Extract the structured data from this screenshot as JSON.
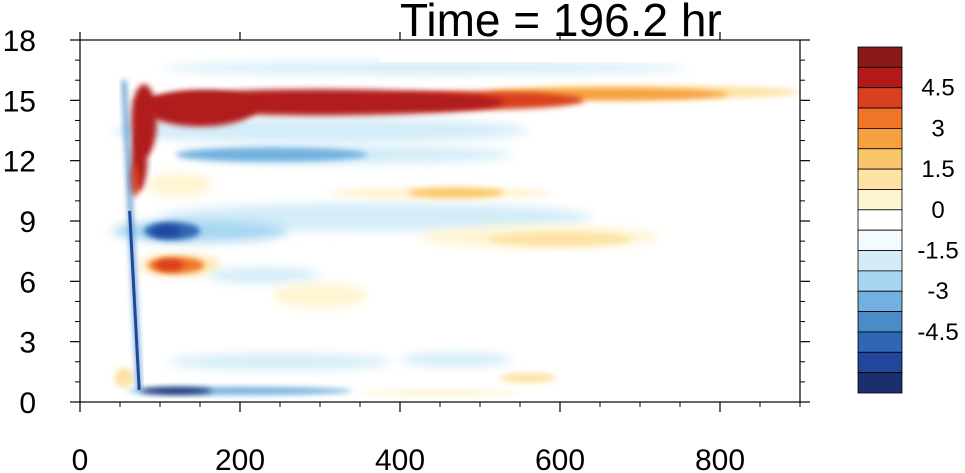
{
  "chart_data": {
    "type": "heatmap",
    "title": "Time = 196.2 hr",
    "xlim": [
      0,
      900
    ],
    "ylim": [
      0,
      18
    ],
    "x_ticks": [
      0,
      200,
      400,
      600,
      800
    ],
    "x_tick_labels": [
      "0",
      "200",
      "400",
      "600",
      "800"
    ],
    "y_ticks": [
      0,
      3,
      6,
      9,
      12,
      15,
      18
    ],
    "y_tick_labels": [
      "0",
      "3",
      "6",
      "9",
      "12",
      "15",
      "18"
    ],
    "colorbar": {
      "levels": [
        -5.25,
        -4.5,
        -3.75,
        -3,
        -2.25,
        -1.5,
        -0.75,
        0,
        0.75,
        1.5,
        2.25,
        3,
        3.75,
        4.5,
        5.25
      ],
      "labels": [
        "4.5",
        "3",
        "1.5",
        "0",
        "-1.5",
        "-3",
        "-4.5"
      ],
      "label_values": [
        4.5,
        3,
        1.5,
        0,
        -1.5,
        -3,
        -4.5
      ],
      "colors": [
        "#1b2f6e",
        "#21479c",
        "#2f67b4",
        "#4a8bc8",
        "#72b1df",
        "#a6d6f2",
        "#d3ecf8",
        "#f4fbfe",
        "#ffffff",
        "#fff4d1",
        "#fde2a4",
        "#fbc56c",
        "#f7a040",
        "#ef7626",
        "#d9401f",
        "#b11a1b",
        "#8a1a1a"
      ]
    },
    "features": [
      {
        "name": "upper positive band",
        "value": 5.5,
        "x": [
          80,
          900
        ],
        "y_center": 15.0,
        "note": "strong red band near 15, fading to orange past 600"
      },
      {
        "name": "curved positive onset",
        "value": 5.2,
        "x": [
          60,
          120
        ],
        "y": [
          10.5,
          16
        ]
      },
      {
        "name": "negative band near 12",
        "value": -2.2,
        "x": [
          110,
          550
        ],
        "y_center": 12.3
      },
      {
        "name": "positive band near 10.5",
        "value": 2.0,
        "x": [
          300,
          580
        ],
        "y_center": 10.4
      },
      {
        "name": "negative blob near 8.5",
        "value": -4.8,
        "x": [
          70,
          140
        ],
        "y_center": 8.5
      },
      {
        "name": "positive blob near 6.8",
        "value": 5.0,
        "x": [
          70,
          160
        ],
        "y_center": 6.8
      },
      {
        "name": "negative streak near 0.5",
        "value": -5.0,
        "x": [
          70,
          350
        ],
        "y_center": 0.5
      },
      {
        "name": "weak positive band near 8.2",
        "value": 1.2,
        "x": [
          420,
          730
        ],
        "y_center": 8.2
      },
      {
        "name": "weak negative band near 9.2",
        "value": -0.8,
        "x": [
          100,
          640
        ],
        "y_center": 9.2
      },
      {
        "name": "positive patch near 1.2",
        "value": 2.0,
        "x": [
          520,
          620
        ],
        "y_center": 1.2
      }
    ]
  }
}
